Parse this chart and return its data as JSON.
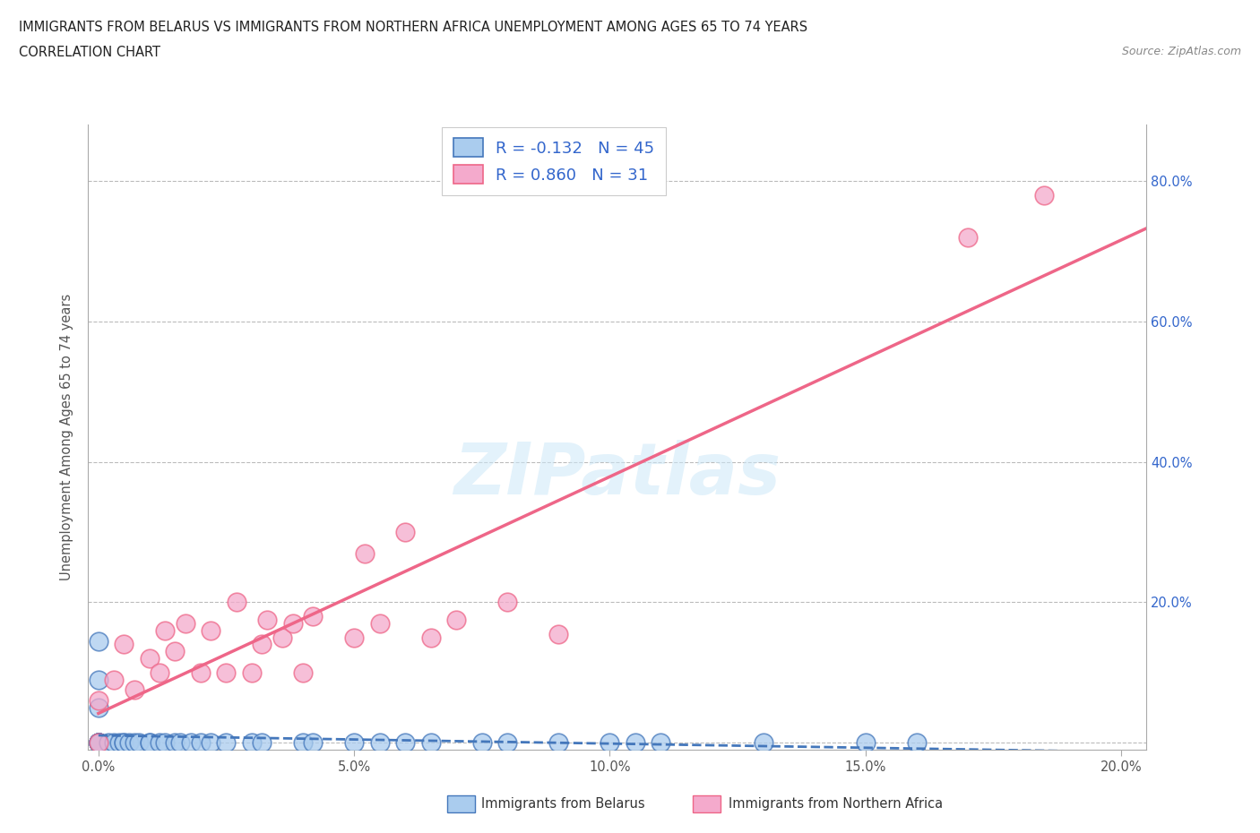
{
  "title_line1": "IMMIGRANTS FROM BELARUS VS IMMIGRANTS FROM NORTHERN AFRICA UNEMPLOYMENT AMONG AGES 65 TO 74 YEARS",
  "title_line2": "CORRELATION CHART",
  "source_text": "Source: ZipAtlas.com",
  "ylabel": "Unemployment Among Ages 65 to 74 years",
  "xlim": [
    -0.002,
    0.205
  ],
  "ylim": [
    -0.01,
    0.88
  ],
  "x_ticks": [
    0.0,
    0.05,
    0.1,
    0.15,
    0.2
  ],
  "x_tick_labels": [
    "0.0%",
    "5.0%",
    "10.0%",
    "15.0%",
    "20.0%"
  ],
  "y_ticks": [
    0.0,
    0.2,
    0.4,
    0.6,
    0.8
  ],
  "y_tick_labels": [
    "",
    "20.0%",
    "40.0%",
    "60.0%",
    "80.0%"
  ],
  "watermark": "ZIPatlas",
  "color_belarus": "#aaccee",
  "color_n_africa": "#f4aacc",
  "color_belarus_line": "#4477bb",
  "color_n_africa_line": "#ee6688",
  "color_right_ticks": "#3366cc",
  "belarus_x": [
    0.0,
    0.0,
    0.0,
    0.0,
    0.0,
    0.0,
    0.0,
    0.0,
    0.0,
    0.0,
    0.002,
    0.003,
    0.004,
    0.005,
    0.005,
    0.006,
    0.007,
    0.008,
    0.01,
    0.01,
    0.012,
    0.013,
    0.015,
    0.016,
    0.018,
    0.02,
    0.022,
    0.025,
    0.03,
    0.032,
    0.04,
    0.042,
    0.05,
    0.055,
    0.06,
    0.065,
    0.075,
    0.08,
    0.09,
    0.1,
    0.105,
    0.11,
    0.13,
    0.15,
    0.16
  ],
  "belarus_y": [
    0.0,
    0.0,
    0.0,
    0.0,
    0.0,
    0.0,
    0.0,
    0.05,
    0.09,
    0.145,
    0.0,
    0.0,
    0.0,
    0.0,
    0.0,
    0.0,
    0.0,
    0.0,
    0.0,
    0.0,
    0.0,
    0.0,
    0.0,
    0.0,
    0.0,
    0.0,
    0.0,
    0.0,
    0.0,
    0.0,
    0.0,
    0.0,
    0.0,
    0.0,
    0.0,
    0.0,
    0.0,
    0.0,
    0.0,
    0.0,
    0.0,
    0.0,
    0.0,
    0.0,
    0.0
  ],
  "n_africa_x": [
    0.0,
    0.0,
    0.003,
    0.005,
    0.007,
    0.01,
    0.012,
    0.013,
    0.015,
    0.017,
    0.02,
    0.022,
    0.025,
    0.027,
    0.03,
    0.032,
    0.033,
    0.036,
    0.038,
    0.04,
    0.042,
    0.05,
    0.052,
    0.055,
    0.06,
    0.065,
    0.07,
    0.08,
    0.09,
    0.17,
    0.185
  ],
  "n_africa_y": [
    0.0,
    0.06,
    0.09,
    0.14,
    0.075,
    0.12,
    0.1,
    0.16,
    0.13,
    0.17,
    0.1,
    0.16,
    0.1,
    0.2,
    0.1,
    0.14,
    0.175,
    0.15,
    0.17,
    0.1,
    0.18,
    0.15,
    0.27,
    0.17,
    0.3,
    0.15,
    0.175,
    0.2,
    0.155,
    0.72,
    0.78
  ]
}
